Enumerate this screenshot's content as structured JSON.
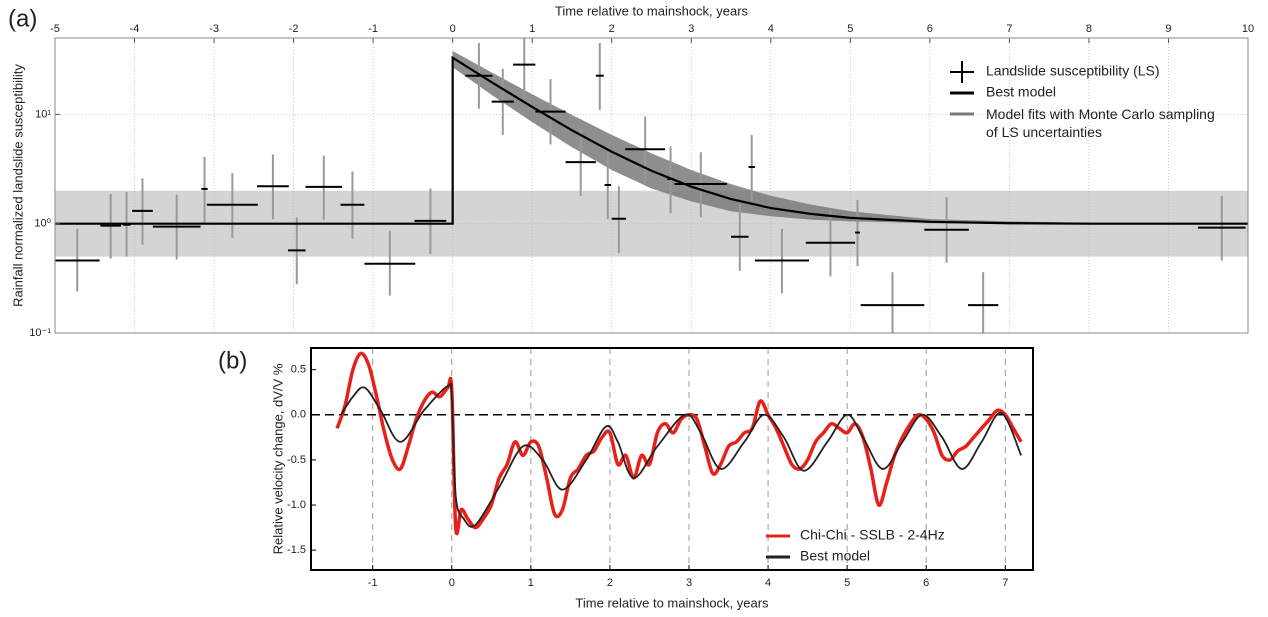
{
  "chart_data": [
    {
      "type": "errorbar",
      "label": "(a)",
      "xlabel": "Time relative to mainshock, years",
      "ylabel": "Rainfall normalized landslide susceptibility",
      "xlim": [
        -5,
        10
      ],
      "xticks": [
        -5,
        -4,
        -3,
        -2,
        -1,
        0,
        1,
        2,
        3,
        4,
        5,
        6,
        7,
        8,
        9,
        10
      ],
      "ylim": [
        0.1,
        50
      ],
      "log_y": true,
      "yticks": [
        {
          "value": 0.1,
          "label": "10⁻¹"
        },
        {
          "value": 1,
          "label": "10⁰"
        },
        {
          "value": 10,
          "label": "10¹"
        }
      ],
      "grid": true,
      "reference_band": {
        "lower": 0.5,
        "upper": 2,
        "color": "#d4d4d4"
      },
      "series": [
        {
          "name": "Landslide susceptibility (LS)",
          "type": "errorbar",
          "color": "#000000",
          "error_color": "#999999",
          "x": [
            -4.72,
            -4.3,
            -4.1,
            -3.9,
            -3.47,
            -3.12,
            -2.77,
            -2.26,
            -1.96,
            -1.62,
            -1.26,
            -0.79,
            -0.28,
            0.33,
            0.63,
            0.9,
            1.23,
            1.61,
            1.85,
            1.95,
            2.09,
            2.42,
            2.74,
            3.12,
            3.61,
            3.76,
            4.14,
            4.75,
            5.09,
            5.53,
            6.21,
            6.67,
            9.67
          ],
          "x_half_width": [
            0.28,
            0.13,
            0.05,
            0.13,
            0.3,
            0.04,
            0.32,
            0.2,
            0.11,
            0.23,
            0.15,
            0.32,
            0.2,
            0.17,
            0.14,
            0.14,
            0.19,
            0.19,
            0.05,
            0.04,
            0.09,
            0.25,
            0.04,
            0.33,
            0.11,
            0.04,
            0.34,
            0.31,
            0.03,
            0.4,
            0.28,
            0.19,
            0.3
          ],
          "values": [
            0.46,
            0.96,
            0.98,
            1.31,
            0.94,
            2.08,
            1.49,
            2.2,
            0.57,
            2.17,
            1.49,
            0.43,
            1.06,
            22.6,
            13.1,
            28.5,
            10.6,
            3.66,
            22.6,
            2.26,
            1.11,
            4.8,
            2.56,
            2.31,
            0.76,
            3.3,
            0.46,
            0.67,
            0.83,
            0.18,
            0.88,
            0.18,
            0.92
          ],
          "lower": [
            0.24,
            0.48,
            0.5,
            0.64,
            0.47,
            1.0,
            0.74,
            1.1,
            0.28,
            1.08,
            0.73,
            0.22,
            0.53,
            11.3,
            6.5,
            14.0,
            5.3,
            1.8,
            11.0,
            1.1,
            0.54,
            2.4,
            1.25,
            1.15,
            0.37,
            1.6,
            0.23,
            0.33,
            0.41,
            0.1,
            0.44,
            0.1,
            0.46
          ],
          "upper": [
            0.9,
            1.87,
            1.95,
            2.6,
            1.85,
            4.1,
            2.9,
            4.3,
            1.14,
            4.2,
            3.0,
            0.86,
            2.1,
            45,
            26,
            50,
            21,
            7.3,
            45,
            4.5,
            2.2,
            9.6,
            5.1,
            4.5,
            1.52,
            6.5,
            0.9,
            1.33,
            1.65,
            0.36,
            1.75,
            0.36,
            1.8
          ]
        },
        {
          "name": "Best model",
          "type": "line",
          "color": "#000000",
          "x": [
            -5,
            0,
            0,
            0.5,
            1,
            1.5,
            2,
            2.5,
            3,
            3.5,
            4,
            4.5,
            5,
            6,
            7,
            8,
            10
          ],
          "values": [
            1,
            1,
            33,
            19.5,
            11.7,
            7.15,
            4.55,
            3.05,
            2.18,
            1.68,
            1.39,
            1.23,
            1.13,
            1.04,
            1.01,
            1,
            1
          ]
        },
        {
          "name": "Model fits with Monte Carlo sampling of  LS uncertainties",
          "type": "band",
          "color": "#7a7a7a",
          "x": [
            0,
            0.5,
            1,
            1.5,
            2,
            2.5,
            3,
            3.5,
            4,
            4.5,
            5,
            6,
            7,
            8,
            10
          ],
          "upper": [
            38,
            24,
            15.3,
            9.9,
            6.5,
            4.4,
            3.1,
            2.3,
            1.8,
            1.5,
            1.3,
            1.1,
            1.05,
            1.02,
            1
          ],
          "lower": [
            27,
            14.9,
            8.5,
            5.0,
            3.1,
            2.1,
            1.6,
            1.3,
            1.17,
            1.09,
            1.05,
            1.01,
            1,
            1,
            1
          ]
        }
      ]
    },
    {
      "type": "line",
      "label": "(b)",
      "xlabel": "Time relative to mainshock, years",
      "ylabel": "Relative velocity change, dV/V %",
      "xlim": [
        -1.78,
        7.35
      ],
      "xticks": [
        -1,
        0,
        1,
        2,
        3,
        4,
        5,
        6,
        7
      ],
      "ylim": [
        -1.72,
        0.74
      ],
      "yticks": [
        0.5,
        {
          "value": 0,
          "label": "0.0"
        },
        -0.5,
        {
          "value": -1,
          "label": "-1.0"
        },
        -1.5
      ],
      "vgrid": true,
      "hlines": [
        0
      ],
      "series": [
        {
          "name": "Chi-Chi - SSLB - 2-4Hz",
          "color": "#e8201a",
          "x": [
            -1.45,
            -1.35,
            -1.25,
            -1.15,
            -1.05,
            -0.95,
            -0.85,
            -0.75,
            -0.65,
            -0.55,
            -0.45,
            -0.35,
            -0.25,
            -0.15,
            -0.05,
            0.0,
            0.05,
            0.12,
            0.2,
            0.3,
            0.4,
            0.5,
            0.6,
            0.7,
            0.8,
            0.9,
            1.0,
            1.1,
            1.2,
            1.3,
            1.4,
            1.5,
            1.6,
            1.7,
            1.8,
            1.9,
            2.0,
            2.1,
            2.2,
            2.3,
            2.4,
            2.5,
            2.6,
            2.7,
            2.8,
            2.9,
            3.0,
            3.1,
            3.2,
            3.3,
            3.4,
            3.5,
            3.6,
            3.7,
            3.8,
            3.9,
            4.0,
            4.1,
            4.2,
            4.3,
            4.4,
            4.5,
            4.6,
            4.7,
            4.8,
            4.9,
            5.0,
            5.1,
            5.2,
            5.3,
            5.4,
            5.5,
            5.6,
            5.7,
            5.8,
            5.9,
            6.0,
            6.1,
            6.2,
            6.3,
            6.4,
            6.5,
            6.6,
            6.7,
            6.8,
            6.9,
            7.0,
            7.1,
            7.2
          ],
          "values": [
            -0.15,
            0.1,
            0.5,
            0.68,
            0.55,
            0.2,
            -0.2,
            -0.5,
            -0.6,
            -0.35,
            -0.05,
            0.15,
            0.25,
            0.2,
            0.3,
            0.28,
            -1.25,
            -1.05,
            -1.15,
            -1.25,
            -1.15,
            -1.0,
            -0.7,
            -0.55,
            -0.3,
            -0.45,
            -0.3,
            -0.35,
            -0.7,
            -1.1,
            -1.05,
            -0.7,
            -0.6,
            -0.45,
            -0.4,
            -0.25,
            -0.2,
            -0.55,
            -0.45,
            -0.7,
            -0.45,
            -0.55,
            -0.2,
            -0.1,
            -0.2,
            -0.05,
            0.0,
            -0.05,
            -0.35,
            -0.65,
            -0.55,
            -0.35,
            -0.3,
            -0.2,
            -0.15,
            0.15,
            0.0,
            -0.15,
            -0.35,
            -0.55,
            -0.6,
            -0.5,
            -0.3,
            -0.2,
            -0.1,
            -0.15,
            -0.2,
            -0.1,
            -0.25,
            -0.6,
            -1.0,
            -0.75,
            -0.45,
            -0.25,
            -0.1,
            0.0,
            -0.05,
            -0.2,
            -0.45,
            -0.5,
            -0.4,
            -0.35,
            -0.25,
            -0.15,
            -0.05,
            0.05,
            0.0,
            -0.15,
            -0.3
          ]
        },
        {
          "name": "Best model",
          "color": "#222222",
          "x": [
            -1.4,
            -1.25,
            -1.1,
            -0.9,
            -0.65,
            -0.35,
            -0.05,
            0,
            0.05,
            0.15,
            0.3,
            0.6,
            0.9,
            1.15,
            1.4,
            1.7,
            1.95,
            2.1,
            2.3,
            2.6,
            2.95,
            3.15,
            3.4,
            3.7,
            3.95,
            4.2,
            4.45,
            4.75,
            5.0,
            5.2,
            5.45,
            5.7,
            5.95,
            6.2,
            6.45,
            6.7,
            6.95,
            7.2
          ],
          "values": [
            0,
            0.2,
            0.3,
            0.05,
            -0.3,
            0.05,
            0.32,
            0.2,
            -0.9,
            -1.15,
            -1.22,
            -0.8,
            -0.35,
            -0.5,
            -0.83,
            -0.5,
            -0.13,
            -0.3,
            -0.7,
            -0.35,
            0.0,
            -0.2,
            -0.6,
            -0.3,
            0.0,
            -0.25,
            -0.62,
            -0.3,
            0.0,
            -0.25,
            -0.6,
            -0.3,
            0.0,
            -0.25,
            -0.6,
            -0.3,
            0.02,
            -0.45
          ]
        }
      ]
    }
  ]
}
